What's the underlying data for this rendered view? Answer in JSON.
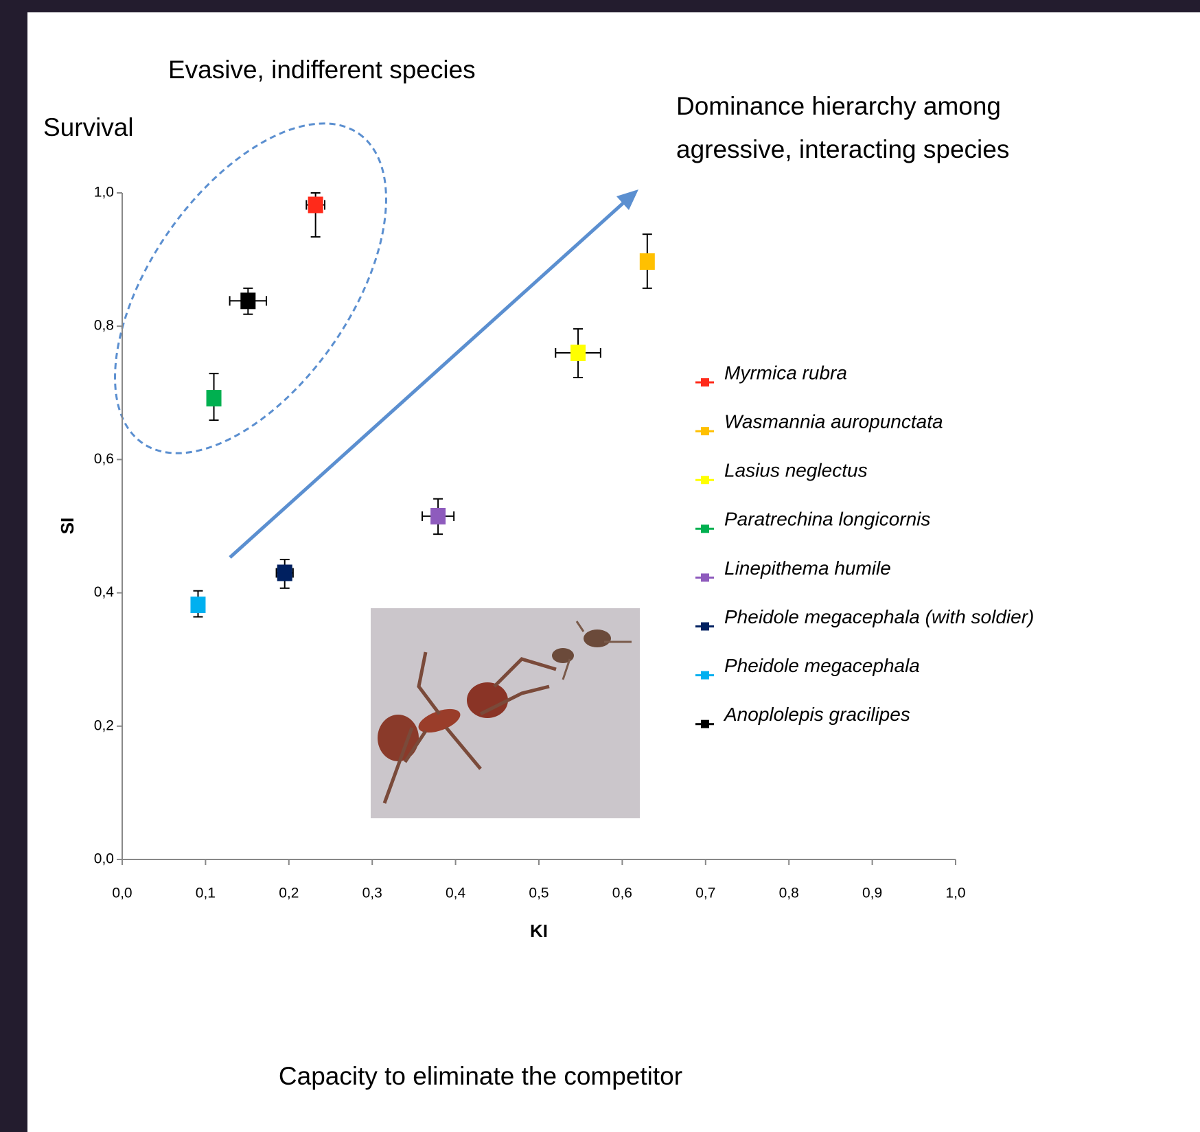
{
  "chart_data": {
    "type": "scatter",
    "xlabel": "KI",
    "ylabel": "SI",
    "y_annotation": "Survival",
    "x_annotation": "Capacity to eliminate the competitor",
    "annotation_left": "Evasive, indifferent species",
    "annotation_right": [
      "Dominance hierarchy among",
      "agressive, interacting species"
    ],
    "xlim": [
      0,
      1
    ],
    "ylim": [
      0,
      1
    ],
    "xticks": [
      {
        "value": 0,
        "label": "0,0"
      },
      {
        "value": 0.1,
        "label": "0,1"
      },
      {
        "value": 0.2,
        "label": "0,2"
      },
      {
        "value": 0.3,
        "label": "0,3"
      },
      {
        "value": 0.4,
        "label": "0,4"
      },
      {
        "value": 0.5,
        "label": "0,5"
      },
      {
        "value": 0.6,
        "label": "0,6"
      },
      {
        "value": 0.7,
        "label": "0,7"
      },
      {
        "value": 0.8,
        "label": "0,8"
      },
      {
        "value": 0.9,
        "label": "0,9"
      },
      {
        "value": 1,
        "label": "1,0"
      }
    ],
    "yticks": [
      {
        "value": 0,
        "label": "0,0"
      },
      {
        "value": 0.2,
        "label": "0,2"
      },
      {
        "value": 0.4,
        "label": "0,4"
      },
      {
        "value": 0.6,
        "label": "0,6"
      },
      {
        "value": 0.8,
        "label": "0,8"
      },
      {
        "value": 1,
        "label": "1,0"
      }
    ],
    "grid": false,
    "series": [
      {
        "name": "Myrmica rubra",
        "color": "#ff2a1a",
        "x": [
          0.232
        ],
        "values": [
          0.982
        ],
        "xerr": [
          0.011
        ],
        "yerr": [
          [
            0.048,
            0.018
          ]
        ]
      },
      {
        "name": "Wasmannia auropunctata",
        "color": "#ffc000",
        "x": [
          0.63
        ],
        "values": [
          0.897
        ],
        "xerr": [
          0.005
        ],
        "yerr": [
          [
            0.04,
            0.041
          ]
        ]
      },
      {
        "name": "Lasius neglectus",
        "color": "#ffff00",
        "x": [
          0.547
        ],
        "values": [
          0.76
        ],
        "xerr": [
          0.027
        ],
        "yerr": [
          [
            0.037,
            0.036
          ]
        ]
      },
      {
        "name": "Paratrechina longicornis",
        "color": "#00b050",
        "x": [
          0.11
        ],
        "values": [
          0.692
        ],
        "xerr": [
          0.004
        ],
        "yerr": [
          [
            0.033,
            0.037
          ]
        ]
      },
      {
        "name": "Linepithema humile",
        "color": "#8e5bbd",
        "x": [
          0.379
        ],
        "values": [
          0.515
        ],
        "xerr": [
          0.019
        ],
        "yerr": [
          [
            0.027,
            0.026
          ]
        ]
      },
      {
        "name": "Pheidole megacephala (with soldier)",
        "color": "#002060",
        "x": [
          0.195
        ],
        "values": [
          0.43
        ],
        "xerr": [
          0.01
        ],
        "yerr": [
          [
            0.023,
            0.02
          ]
        ]
      },
      {
        "name": "Pheidole megacephala",
        "color": "#00b0f0",
        "x": [
          0.091
        ],
        "values": [
          0.382
        ],
        "xerr": [
          0.004
        ],
        "yerr": [
          [
            0.018,
            0.021
          ]
        ]
      },
      {
        "name": "Anoplolepis gracilipes",
        "color": "#000000",
        "x": [
          0.151
        ],
        "values": [
          0.838
        ],
        "xerr": [
          0.022
        ],
        "yerr": [
          [
            0.02,
            0.019
          ]
        ]
      }
    ]
  }
}
